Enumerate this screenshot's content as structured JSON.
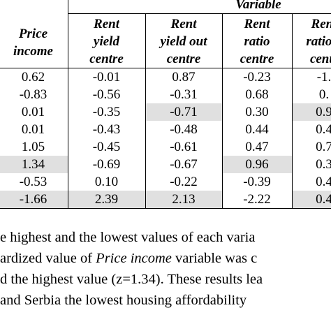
{
  "header": {
    "variable_label": "Variable"
  },
  "table": {
    "columns": [
      [
        "Price",
        "income"
      ],
      [
        "Rent",
        "yield",
        "centre"
      ],
      [
        "Rent",
        "yield out",
        "centre"
      ],
      [
        "Rent",
        "ratio",
        "centre"
      ],
      [
        "Rent",
        "ratio o",
        "centr"
      ]
    ],
    "rows": [
      [
        "0.62",
        "-0.01",
        "0.87",
        "-0.23",
        "-1."
      ],
      [
        "-0.83",
        "-0.56",
        "-0.31",
        "0.68",
        "0."
      ],
      [
        "0.01",
        "-0.35",
        "-0.71",
        "0.30",
        "0.9"
      ],
      [
        "0.01",
        "-0.43",
        "-0.48",
        "0.44",
        "0.4"
      ],
      [
        "1.05",
        "-0.45",
        "-0.61",
        "0.47",
        "0.7"
      ],
      [
        "1.34",
        "-0.69",
        "-0.67",
        "0.96",
        "0.3"
      ],
      [
        "-0.53",
        "0.10",
        "-0.22",
        "-0.39",
        "0.4"
      ],
      [
        "-1.66",
        "2.39",
        "2.13",
        "-2.22",
        "0.4"
      ]
    ],
    "highlight": [
      [
        false,
        false,
        false,
        false,
        false
      ],
      [
        false,
        false,
        false,
        false,
        false
      ],
      [
        false,
        false,
        true,
        false,
        true
      ],
      [
        false,
        false,
        false,
        false,
        false
      ],
      [
        false,
        false,
        false,
        false,
        false
      ],
      [
        true,
        false,
        false,
        true,
        false
      ],
      [
        false,
        false,
        false,
        false,
        false
      ],
      [
        true,
        true,
        true,
        false,
        true
      ]
    ]
  },
  "paragraph": [
    [
      {
        "text": "e highest and the lowest values of each varia",
        "italic": false
      }
    ],
    [
      {
        "text": "ardized value of ",
        "italic": false
      },
      {
        "text": "Price income",
        "italic": true
      },
      {
        "text": " variable was c",
        "italic": false
      }
    ],
    [
      {
        "text": "d the highest value (z=1.34). These results lea",
        "italic": false
      }
    ],
    [
      {
        "text": " and Serbia the lowest housing affordability",
        "italic": false
      }
    ]
  ]
}
